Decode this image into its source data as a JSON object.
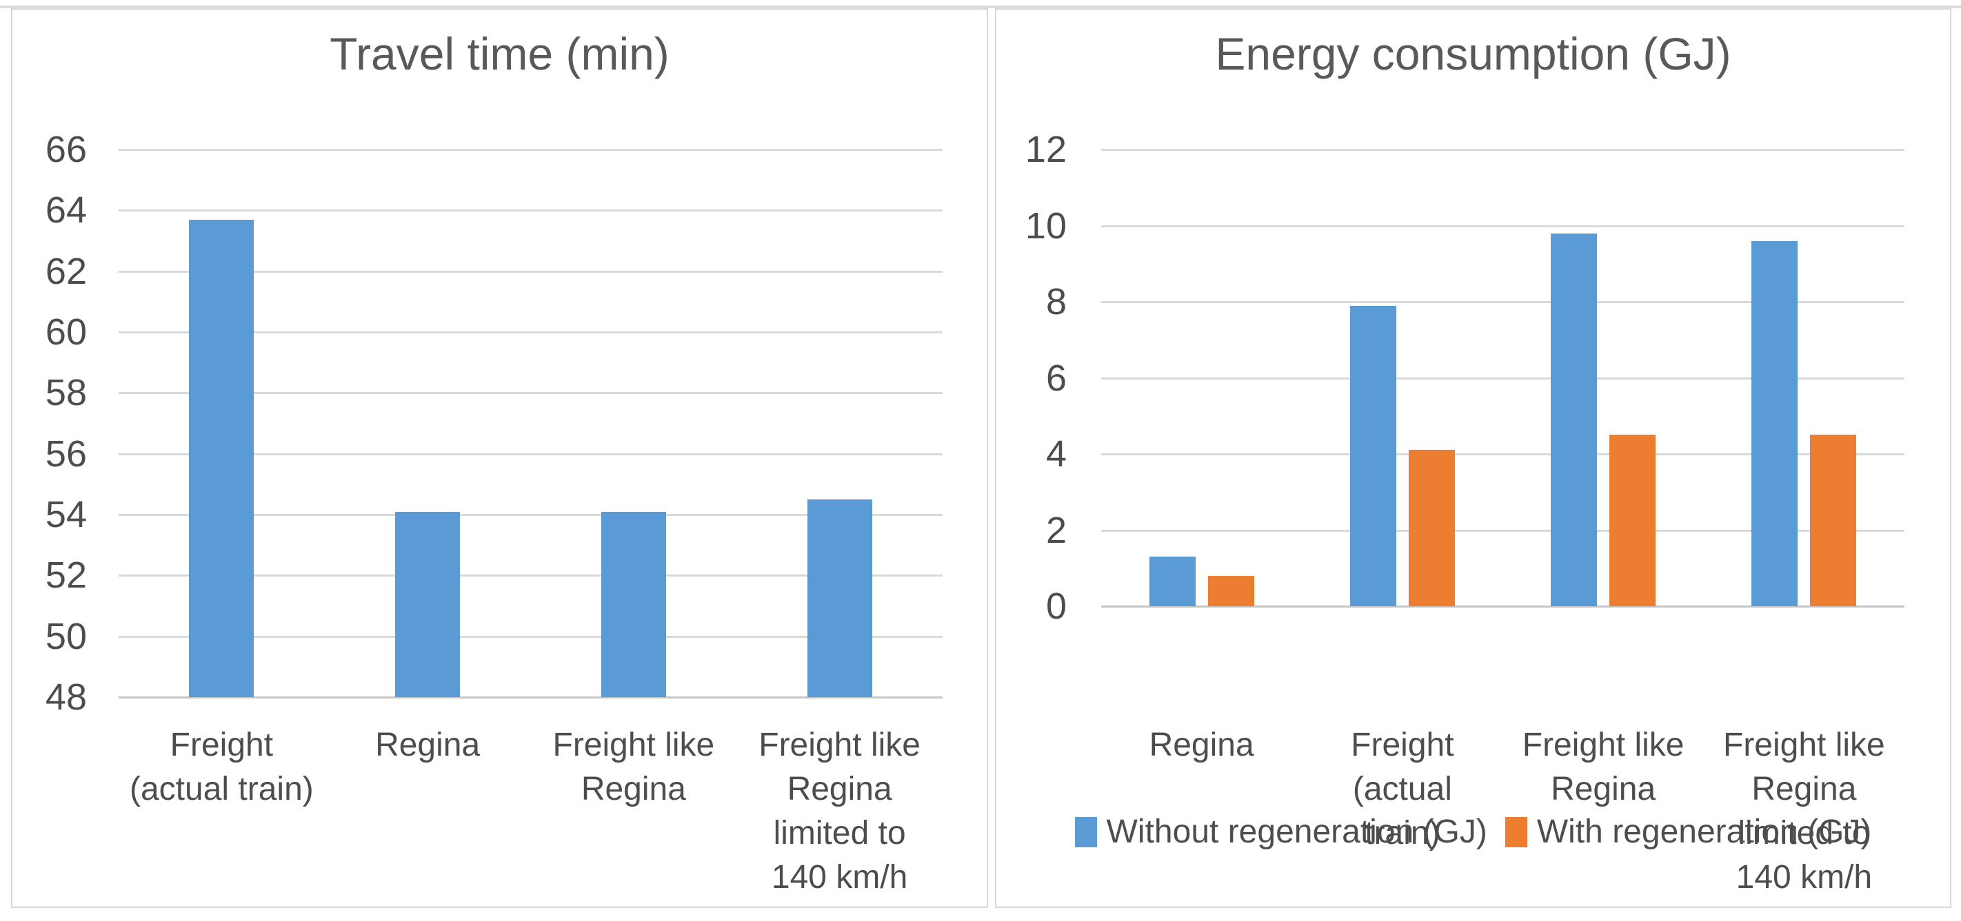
{
  "colors": {
    "blue_series": "#5b9bd5",
    "orange_series": "#ed7d31",
    "title_text": "#595959",
    "axis_text": "#4d4d4d",
    "gridline": "#d9d9d9",
    "panel_border": "#d8d8d8"
  },
  "chart_data": [
    {
      "type": "bar",
      "title": "Travel time (min)",
      "categories": [
        "Freight (actual train)",
        "Regina",
        "Freight like Regina",
        "Freight like Regina limited to 140 km/h"
      ],
      "category_lines": [
        [
          "Freight",
          "(actual train)"
        ],
        [
          "Regina"
        ],
        [
          "Freight like",
          "Regina"
        ],
        [
          "Freight like",
          "Regina",
          "limited to",
          "140 km/h"
        ]
      ],
      "series": [
        {
          "name": "Travel time (min)",
          "color": "#5b9bd5",
          "values": [
            63.7,
            54.1,
            54.1,
            54.5
          ]
        }
      ],
      "xlabel": "",
      "ylabel": "",
      "ylim": [
        48,
        66
      ],
      "y_ticks": [
        66,
        64,
        62,
        60,
        58,
        56,
        54,
        52,
        50,
        48
      ],
      "grid": true,
      "legend_position": "none"
    },
    {
      "type": "bar",
      "title": "Energy consumption (GJ)",
      "categories": [
        "Regina",
        "Freight (actual train)",
        "Freight like Regina",
        "Freight like Regina limited to 140 km/h"
      ],
      "category_lines": [
        [
          "Regina"
        ],
        [
          "Freight",
          "(actual",
          "train)"
        ],
        [
          "Freight like",
          "Regina"
        ],
        [
          "Freight like",
          "Regina",
          "limited to",
          "140 km/h"
        ]
      ],
      "series": [
        {
          "name": "Without regeneration (GJ)",
          "color": "#5b9bd5",
          "values": [
            1.3,
            7.9,
            9.8,
            9.6
          ]
        },
        {
          "name": "With regeneration (GJ)",
          "color": "#ed7d31",
          "values": [
            0.8,
            4.1,
            4.5,
            4.5
          ]
        }
      ],
      "xlabel": "",
      "ylabel": "",
      "ylim": [
        0,
        12
      ],
      "y_ticks": [
        12,
        10,
        8,
        6,
        4,
        2,
        0
      ],
      "grid": true,
      "legend_position": "bottom"
    }
  ]
}
